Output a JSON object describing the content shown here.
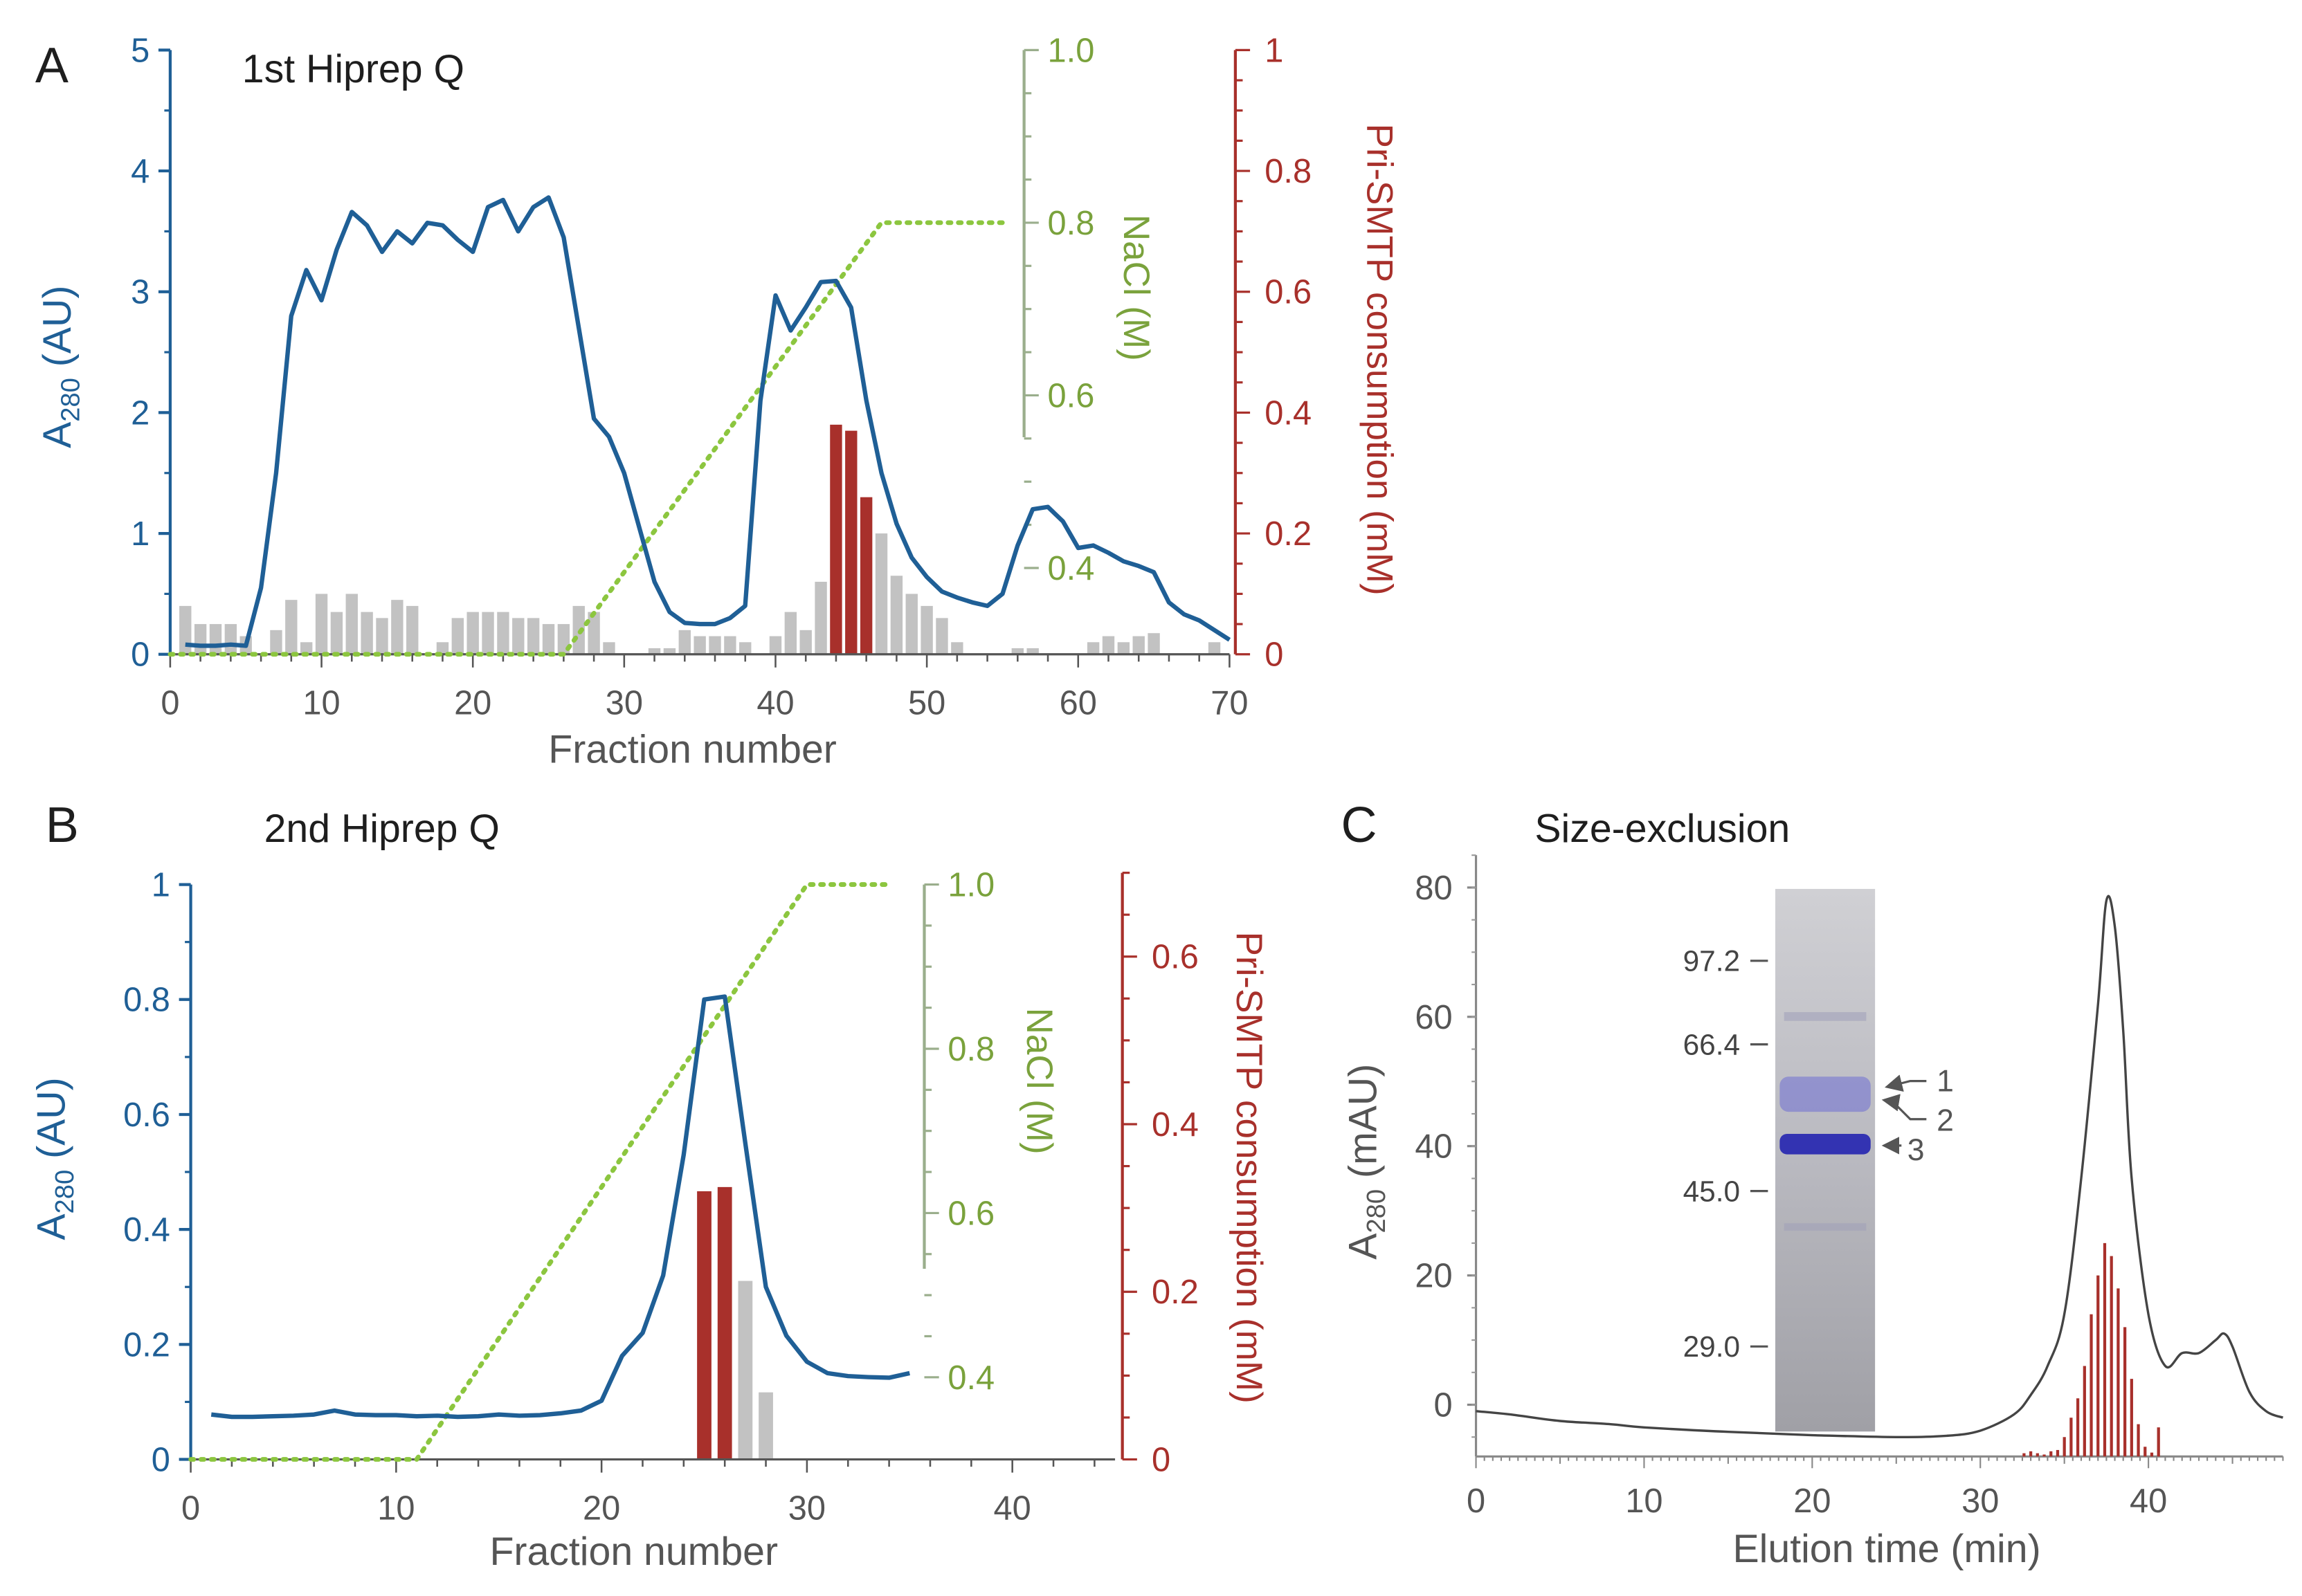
{
  "colors": {
    "a280": "#1f5f96",
    "nacl": "#8cc63f",
    "nacl_axis": "#9aae8c",
    "nacl_text": "#7aa23c",
    "consumption": "#a8302b",
    "activity_bar": "#c2c2c2",
    "sec_trace": "#444444"
  },
  "chart_data": [
    {
      "panel_letter": "A",
      "type": "line",
      "title": "1st Hiprep Q",
      "xlabel": "Fraction number",
      "ylabel_main": "A",
      "ylabel_sub": "280",
      "ylabel_unit": " (AU)",
      "y2label": "NaCl (M)",
      "y3label": "Pri-SMTP consumption (mM)",
      "xlim": [
        0,
        70
      ],
      "ylim": [
        0,
        5
      ],
      "y2lim": [
        0.3,
        1.0
      ],
      "y3lim": [
        0,
        1
      ],
      "xticks": [
        "0",
        "10",
        "20",
        "30",
        "40",
        "50",
        "60",
        "70"
      ],
      "yticks": [
        "0",
        "1",
        "2",
        "3",
        "4",
        "5"
      ],
      "y2ticks": [
        "0.4",
        "0.6",
        "0.8",
        "1.0"
      ],
      "y3ticks": [
        "0",
        "0.2",
        "0.4",
        "0.6",
        "0.8",
        "1"
      ],
      "series": [
        {
          "name": "A280",
          "x": [
            1,
            2,
            3,
            4,
            5,
            6,
            7,
            8,
            9,
            10,
            11,
            12,
            13,
            14,
            15,
            16,
            17,
            18,
            19,
            20,
            21,
            22,
            23,
            24,
            25,
            26,
            27,
            28,
            29,
            30,
            31,
            32,
            33,
            34,
            35,
            36,
            37,
            38,
            39,
            40,
            41,
            42,
            43,
            44,
            45,
            46,
            47,
            48,
            49,
            50,
            51,
            52,
            53,
            54,
            55,
            56,
            57,
            58,
            59,
            60,
            61,
            62,
            63,
            64,
            65,
            66,
            67,
            68,
            69,
            70
          ],
          "values": [
            0.08,
            0.07,
            0.07,
            0.08,
            0.07,
            0.55,
            1.5,
            2.8,
            3.18,
            2.93,
            3.35,
            3.66,
            3.55,
            3.33,
            3.5,
            3.4,
            3.57,
            3.55,
            3.43,
            3.33,
            3.7,
            3.76,
            3.5,
            3.7,
            3.78,
            3.45,
            2.7,
            1.95,
            1.8,
            1.5,
            1.05,
            0.6,
            0.35,
            0.26,
            0.25,
            0.25,
            0.3,
            0.4,
            2.1,
            2.97,
            2.68,
            2.87,
            3.08,
            3.09,
            2.87,
            2.1,
            1.5,
            1.08,
            0.8,
            0.64,
            0.52,
            0.47,
            0.43,
            0.4,
            0.5,
            0.9,
            1.2,
            1.22,
            1.1,
            0.88,
            0.9,
            0.84,
            0.77,
            0.73,
            0.68,
            0.43,
            0.33,
            0.28,
            0.2,
            0.12
          ]
        },
        {
          "name": "NaCl (M)",
          "x": [
            0,
            26,
            47,
            55
          ],
          "values": [
            0.3,
            0.3,
            0.8,
            0.8
          ]
        },
        {
          "name": "Pri-SMTP consumption (mM)",
          "x": [
            1,
            2,
            3,
            4,
            5,
            7,
            8,
            9,
            10,
            11,
            12,
            13,
            14,
            15,
            16,
            18,
            19,
            20,
            21,
            22,
            23,
            24,
            25,
            26,
            27,
            28,
            29,
            32,
            33,
            34,
            35,
            36,
            37,
            38,
            40,
            41,
            42,
            43,
            44,
            45,
            46,
            47,
            48,
            49,
            50,
            51,
            52,
            56,
            57,
            61,
            62,
            63,
            64,
            65,
            69
          ],
          "values": [
            0.08,
            0.05,
            0.05,
            0.05,
            0.03,
            0.04,
            0.09,
            0.02,
            0.1,
            0.07,
            0.1,
            0.07,
            0.06,
            0.09,
            0.08,
            0.02,
            0.06,
            0.07,
            0.07,
            0.07,
            0.06,
            0.06,
            0.05,
            0.05,
            0.08,
            0.07,
            0.02,
            0.01,
            0.01,
            0.04,
            0.03,
            0.03,
            0.03,
            0.02,
            0.03,
            0.07,
            0.04,
            0.12,
            0.38,
            0.37,
            0.26,
            0.2,
            0.13,
            0.1,
            0.08,
            0.06,
            0.02,
            0.01,
            0.01,
            0.02,
            0.03,
            0.02,
            0.03,
            0.035,
            0.02
          ],
          "highlighted_x": [
            44,
            45,
            46
          ]
        }
      ]
    },
    {
      "panel_letter": "B",
      "type": "line",
      "title": "2nd Hiprep Q",
      "xlabel": "Fraction number",
      "ylabel_main": "A",
      "ylabel_sub": "280",
      "ylabel_unit": " (AU)",
      "y2label": "NaCl (M)",
      "y3label": "Pri-SMTP consumption (mM)",
      "xlim": [
        0,
        45
      ],
      "ylim": [
        0,
        1
      ],
      "y2lim": [
        0.3,
        1.0
      ],
      "y3lim": [
        0,
        0.7
      ],
      "xticks": [
        "0",
        "10",
        "20",
        "30",
        "40"
      ],
      "yticks": [
        "0",
        "0.2",
        "0.4",
        "0.6",
        "0.8",
        "1"
      ],
      "y2ticks": [
        "0.4",
        "0.6",
        "0.8",
        "1.0"
      ],
      "y3ticks": [
        "0",
        "0.2",
        "0.4",
        "0.6"
      ],
      "series": [
        {
          "name": "A280",
          "x": [
            1,
            2,
            3,
            4,
            5,
            6,
            7,
            8,
            9,
            10,
            11,
            12,
            13,
            14,
            15,
            16,
            17,
            18,
            19,
            20,
            21,
            22,
            23,
            24,
            25,
            26,
            27,
            28,
            29,
            30,
            31,
            32,
            33,
            34,
            35
          ],
          "values": [
            0.078,
            0.074,
            0.074,
            0.075,
            0.076,
            0.078,
            0.085,
            0.078,
            0.077,
            0.077,
            0.075,
            0.076,
            0.074,
            0.075,
            0.078,
            0.076,
            0.077,
            0.08,
            0.085,
            0.102,
            0.18,
            0.22,
            0.32,
            0.53,
            0.8,
            0.805,
            0.55,
            0.3,
            0.215,
            0.17,
            0.15,
            0.145,
            0.143,
            0.142,
            0.15
          ]
        },
        {
          "name": "NaCl (M)",
          "x": [
            0,
            11,
            30,
            34
          ],
          "values": [
            0.3,
            0.3,
            1.0,
            1.0
          ]
        },
        {
          "name": "Pri-SMTP consumption (mM)",
          "x": [
            25,
            26,
            27,
            28
          ],
          "values": [
            0.32,
            0.325,
            0.213,
            0.08
          ],
          "highlighted_x": [
            25,
            26
          ]
        }
      ]
    },
    {
      "panel_letter": "C",
      "type": "line",
      "title": "Size-exclusion",
      "xlabel": "Elution time (min)",
      "ylabel_main": "A",
      "ylabel_sub": "280",
      "ylabel_unit": " (mAU)",
      "xlim": [
        0,
        48
      ],
      "ylim": [
        -8,
        85
      ],
      "xticks": [
        "0",
        "10",
        "20",
        "30",
        "40"
      ],
      "yticks": [
        "0",
        "20",
        "40",
        "60",
        "80"
      ],
      "series": [
        {
          "name": "A280",
          "x": [
            0,
            2,
            5,
            8,
            10,
            15,
            20,
            25,
            28,
            30,
            32,
            33,
            34,
            35,
            36,
            37,
            37.5,
            38,
            38.5,
            39,
            40,
            41,
            42,
            43,
            44,
            44.5,
            45,
            46,
            47,
            48
          ],
          "values": [
            -1,
            -1.5,
            -2.5,
            -3,
            -3.5,
            -4.2,
            -4.7,
            -5,
            -4.8,
            -4,
            -1.5,
            1.5,
            6,
            14,
            35,
            62,
            78,
            74,
            58,
            35,
            14,
            6,
            8,
            8,
            10,
            11,
            9,
            2,
            -1,
            -2
          ]
        },
        {
          "name": "Pri-SMTP consumption",
          "x": [
            32.6,
            33,
            33.4,
            33.8,
            34.2,
            34.6,
            35,
            35.4,
            35.8,
            36.2,
            36.6,
            37,
            37.4,
            37.8,
            38.2,
            38.6,
            39,
            39.4,
            39.8,
            40.2,
            40.6
          ],
          "values": [
            0.5,
            0.8,
            0.5,
            0.3,
            0.8,
            1,
            3,
            6,
            9,
            14,
            22,
            28,
            33,
            31,
            26,
            20,
            12,
            5,
            1.5,
            0.6,
            4.5
          ]
        }
      ],
      "gel_inset": {
        "markers": [
          "97.2",
          "66.4",
          "45.0",
          "29.0"
        ],
        "band_labels": [
          "1",
          "2",
          "3"
        ]
      }
    }
  ]
}
